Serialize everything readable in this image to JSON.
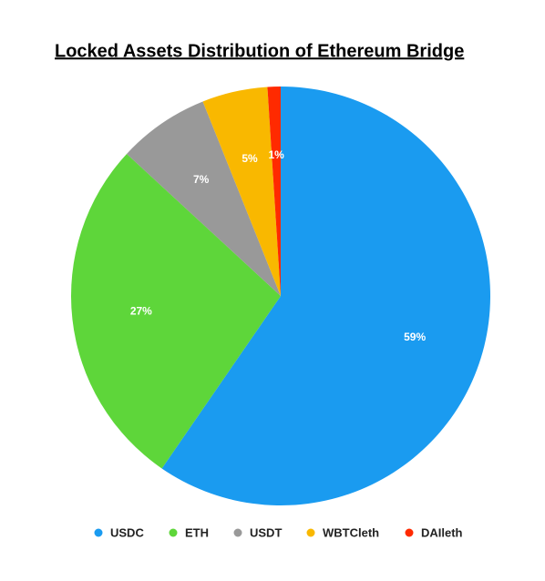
{
  "chart_data": {
    "type": "pie",
    "title": "Locked Assets Distribution of Ethereum Bridge",
    "categories": [
      "USDC",
      "ETH",
      "USDT",
      "WBTCleth",
      "DAIleth"
    ],
    "values": [
      59,
      27,
      7,
      5,
      1
    ],
    "value_labels": [
      "59%",
      "27%",
      "7%",
      "5%",
      "1%"
    ],
    "colors": [
      "#1a9bf0",
      "#5ed63a",
      "#999999",
      "#f9b800",
      "#ff2a00"
    ],
    "legend": "bottom"
  }
}
